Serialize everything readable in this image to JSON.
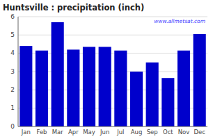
{
  "chart_data": {
    "type": "bar",
    "title": "Huntsville : precipitation (inch)",
    "categories": [
      "Jan",
      "Feb",
      "Mar",
      "Apr",
      "May",
      "Jun",
      "Jul",
      "Aug",
      "Sep",
      "Oct",
      "Nov",
      "Dec"
    ],
    "values": [
      4.4,
      4.15,
      5.7,
      4.2,
      4.35,
      4.35,
      4.15,
      3.0,
      3.5,
      2.65,
      4.15,
      5.05
    ],
    "color": "#0000CC",
    "ylim": [
      0,
      6
    ],
    "yticks": [
      0,
      1,
      2,
      3,
      4,
      5,
      6
    ],
    "grid": true,
    "annotations": [
      "www.allmetsat.com"
    ]
  }
}
